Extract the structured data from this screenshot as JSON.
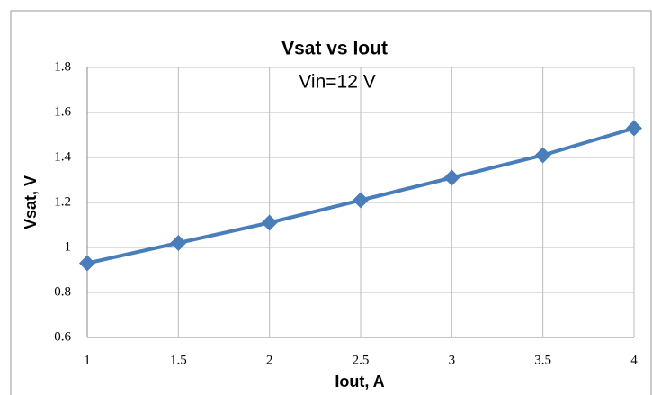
{
  "chart_data": {
    "type": "line",
    "title": "Vsat vs Iout",
    "subtitle": "Vin=12 V",
    "x_label": "Iout, A",
    "y_label": "Vsat, V",
    "x": [
      1,
      1.5,
      2,
      2.5,
      3,
      3.5,
      4
    ],
    "series": [
      {
        "name": "Vsat",
        "color": "#4a7ebb",
        "values": [
          0.93,
          1.02,
          1.11,
          1.21,
          1.31,
          1.41,
          1.53
        ]
      }
    ],
    "xlim": [
      1,
      4
    ],
    "xticks": [
      1,
      1.5,
      2,
      2.5,
      3,
      3.5,
      4
    ],
    "ylim": [
      0.6,
      1.8
    ],
    "yticks": [
      0.6,
      0.8,
      1,
      1.2,
      1.4,
      1.6,
      1.8
    ],
    "grid": true
  }
}
